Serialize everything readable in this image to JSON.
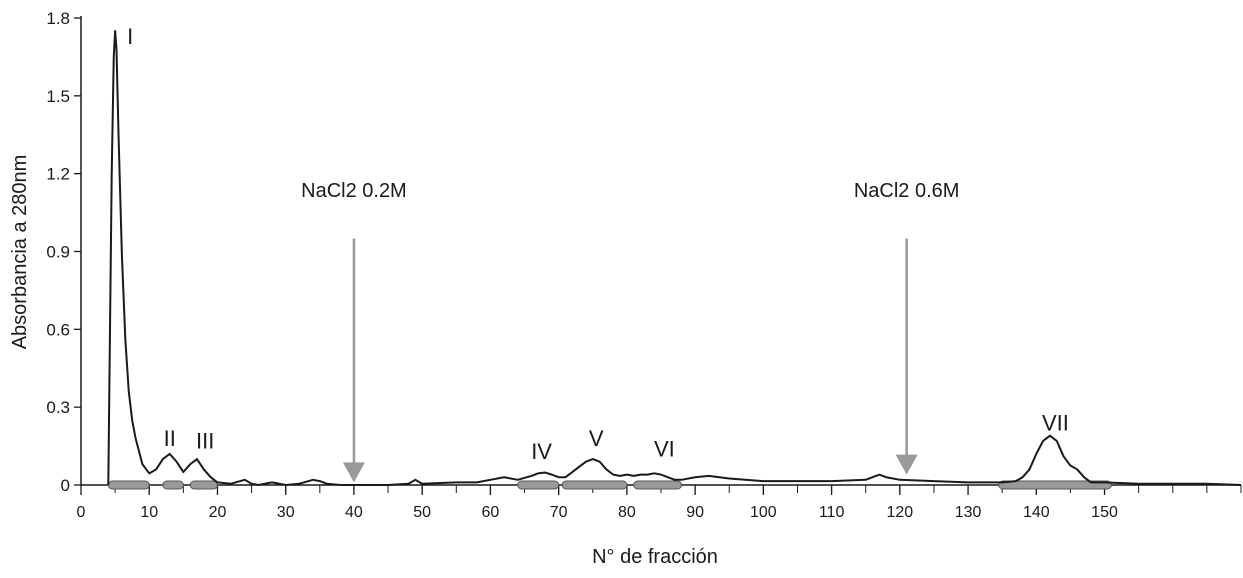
{
  "chart_data": {
    "type": "line",
    "title": "",
    "xlabel": "N° de fracción",
    "ylabel": "Absorbancia a 280nm",
    "xlim": [
      0,
      170
    ],
    "ylim": [
      0,
      1.8
    ],
    "x_ticks": [
      0,
      10,
      20,
      30,
      40,
      50,
      60,
      70,
      80,
      90,
      100,
      110,
      120,
      130,
      140,
      150
    ],
    "x_tick_labels": [
      "0",
      "10",
      "20",
      "30",
      "40",
      "50",
      "60",
      "70",
      "80",
      "90",
      "100",
      "110",
      "120",
      "130",
      "140",
      "150"
    ],
    "x_minor_step": 5,
    "y_ticks": [
      0,
      0.3,
      0.6,
      0.9,
      1.2,
      1.5,
      1.8
    ],
    "y_tick_labels": [
      "0",
      "0.3",
      "0.6",
      "0.9",
      "1.2",
      "1.5",
      "1.8"
    ],
    "grid": false,
    "line_color": "#1a1a1a",
    "series": [
      {
        "x": [
          4,
          4.5,
          4.8,
          5,
          5.2,
          5.5,
          6,
          6.5,
          7,
          7.5,
          8,
          9,
          10,
          11,
          12,
          13,
          14,
          15,
          16,
          17,
          18,
          19,
          20,
          22,
          24,
          25,
          26,
          28,
          30,
          32,
          34,
          35,
          36,
          38,
          40,
          45,
          48,
          49,
          50,
          55,
          58,
          60,
          62,
          64,
          66,
          67,
          68,
          69,
          70,
          71,
          72,
          73,
          74,
          75,
          76,
          77,
          78,
          79,
          80,
          81,
          82,
          83,
          84,
          85,
          86,
          87,
          88,
          90,
          92,
          95,
          100,
          105,
          110,
          115,
          116,
          117,
          118,
          120,
          125,
          130,
          134,
          135,
          137,
          138,
          139,
          140,
          141,
          142,
          143,
          144,
          145,
          146,
          147,
          148,
          150,
          155,
          160,
          165,
          170
        ],
        "values": [
          0,
          1.2,
          1.65,
          1.75,
          1.68,
          1.35,
          0.88,
          0.56,
          0.36,
          0.25,
          0.18,
          0.08,
          0.045,
          0.06,
          0.1,
          0.12,
          0.09,
          0.05,
          0.08,
          0.1,
          0.06,
          0.03,
          0.01,
          0.005,
          0.02,
          0.005,
          0,
          0.01,
          0,
          0.005,
          0.02,
          0.015,
          0.005,
          0,
          0,
          0,
          0.005,
          0.02,
          0.005,
          0.01,
          0.01,
          0.02,
          0.03,
          0.02,
          0.035,
          0.045,
          0.048,
          0.04,
          0.03,
          0.03,
          0.05,
          0.07,
          0.09,
          0.1,
          0.09,
          0.06,
          0.04,
          0.035,
          0.04,
          0.035,
          0.04,
          0.04,
          0.045,
          0.04,
          0.03,
          0.02,
          0.02,
          0.03,
          0.035,
          0.025,
          0.015,
          0.015,
          0.015,
          0.02,
          0.03,
          0.04,
          0.03,
          0.02,
          0.015,
          0.01,
          0.01,
          0.01,
          0.015,
          0.03,
          0.06,
          0.12,
          0.17,
          0.19,
          0.17,
          0.11,
          0.075,
          0.06,
          0.03,
          0.01,
          0.01,
          0.005,
          0.005,
          0.005,
          0
        ]
      }
    ],
    "peak_labels": [
      {
        "text": "I",
        "x": 7.2,
        "y": 1.7
      },
      {
        "text": "II",
        "x": 13,
        "y": 0.15
      },
      {
        "text": "III",
        "x": 18.2,
        "y": 0.14
      },
      {
        "text": "IV",
        "x": 67.5,
        "y": 0.1
      },
      {
        "text": "V",
        "x": 75.5,
        "y": 0.15
      },
      {
        "text": "VI",
        "x": 85.5,
        "y": 0.11
      },
      {
        "text": "VII",
        "x": 142.8,
        "y": 0.21
      }
    ],
    "annotations": [
      {
        "text": "NaCl2 0.2M",
        "x": 40,
        "y_text": 1.11,
        "y_start": 0.95,
        "y_end": 0.01,
        "color": "#999999"
      },
      {
        "text": "NaCl2 0.6M",
        "x": 121,
        "y_text": 1.11,
        "y_start": 0.95,
        "y_end": 0.04,
        "color": "#999999"
      }
    ],
    "fraction_pools": [
      [
        4,
        10
      ],
      [
        12,
        15
      ],
      [
        16,
        20
      ],
      [
        64,
        70
      ],
      [
        70.5,
        80
      ],
      [
        81,
        88
      ],
      [
        134.5,
        151
      ]
    ],
    "pool_color": "#999999"
  }
}
